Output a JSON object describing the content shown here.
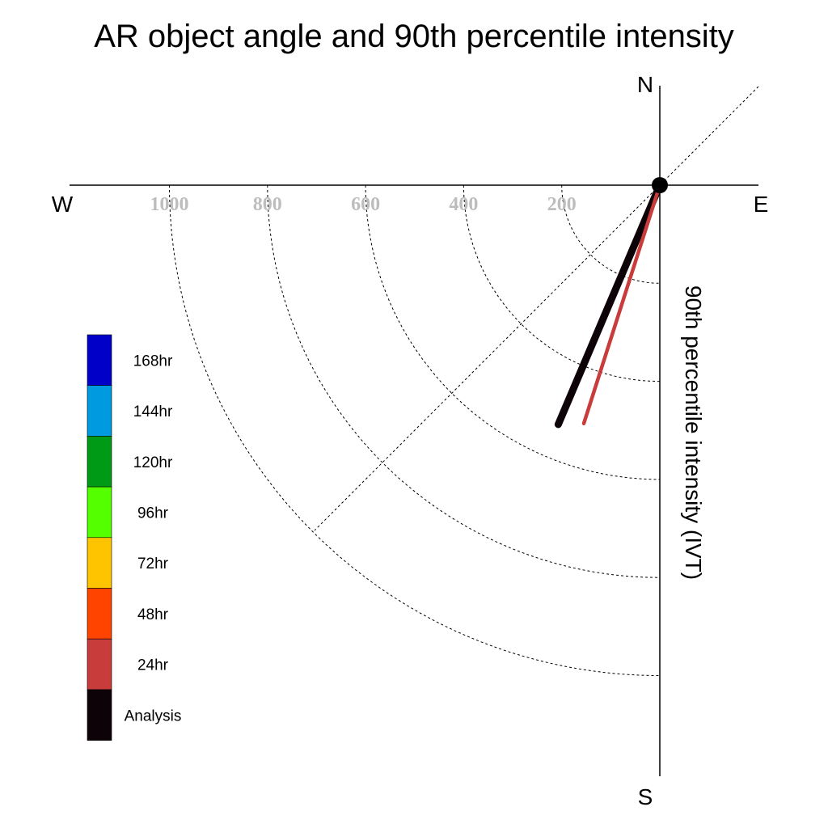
{
  "chart_data": {
    "type": "polar-vector",
    "title": "AR object angle and 90th percentile intensity",
    "ylabel": "90th percentile intensity (IVT)",
    "compass": {
      "north": "N",
      "south": "S",
      "east": "E",
      "west": "W"
    },
    "radial_ticks": [
      "200",
      "400",
      "600",
      "800",
      "1000"
    ],
    "radial_values": [
      200,
      400,
      600,
      800,
      1000
    ],
    "rlim": [
      0,
      1000
    ],
    "angular_range": "west-to-south quadrant",
    "grid": true,
    "series": [
      {
        "name": "Analysis",
        "color": "#0d0208",
        "angle_deg_from_south": 23.0,
        "magnitude": 530
      },
      {
        "name": "24hr",
        "color": "#c83c3c",
        "angle_deg_from_south": 17.7,
        "magnitude": 510
      }
    ],
    "legend": {
      "placement": "left",
      "entries": [
        {
          "label": "168hr",
          "color": "#0000c8"
        },
        {
          "label": "144hr",
          "color": "#009ae0"
        },
        {
          "label": "120hr",
          "color": "#009a16"
        },
        {
          "label": "96hr",
          "color": "#54ff00"
        },
        {
          "label": "72hr",
          "color": "#ffc400"
        },
        {
          "label": "48hr",
          "color": "#ff4400"
        },
        {
          "label": "24hr",
          "color": "#c83c3c"
        },
        {
          "label": "Analysis",
          "color": "#0d0208"
        }
      ]
    }
  }
}
